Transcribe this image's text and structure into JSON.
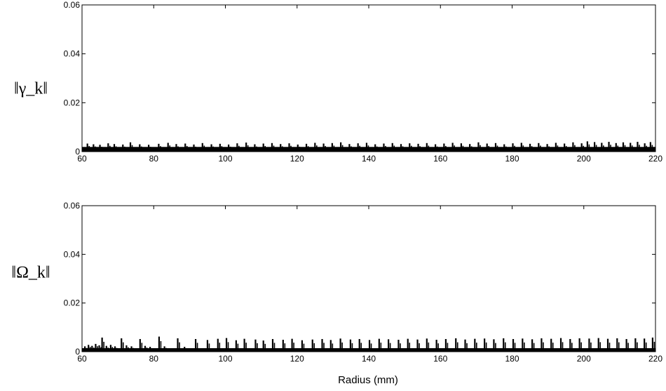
{
  "chart_data": [
    {
      "type": "line",
      "ylabel": "‖γ_k‖",
      "xlabel": "",
      "xlim": [
        60,
        220
      ],
      "ylim": [
        0,
        0.06
      ],
      "xticks": [
        "60",
        "80",
        "100",
        "120",
        "140",
        "160",
        "180",
        "200",
        "220"
      ],
      "yticks": [
        "0",
        "0.02",
        "0.04",
        "0.06"
      ],
      "grid": false,
      "line_color": "#000000",
      "series": [
        {
          "baseline": 0.0012,
          "spikes": [
            {
              "x": 61.5,
              "y": 0.0033
            },
            {
              "x": 63.2,
              "y": 0.003
            },
            {
              "x": 65.0,
              "y": 0.0028
            },
            {
              "x": 67.3,
              "y": 0.0034
            },
            {
              "x": 69.0,
              "y": 0.0031
            },
            {
              "x": 71.4,
              "y": 0.0029
            },
            {
              "x": 73.5,
              "y": 0.0038
            },
            {
              "x": 76.1,
              "y": 0.003
            },
            {
              "x": 78.6,
              "y": 0.0028
            },
            {
              "x": 81.4,
              "y": 0.0032
            },
            {
              "x": 84.0,
              "y": 0.0036
            },
            {
              "x": 86.3,
              "y": 0.0031
            },
            {
              "x": 88.8,
              "y": 0.0033
            },
            {
              "x": 91.2,
              "y": 0.0029
            },
            {
              "x": 93.6,
              "y": 0.0035
            },
            {
              "x": 96.1,
              "y": 0.003
            },
            {
              "x": 98.5,
              "y": 0.0032
            },
            {
              "x": 100.9,
              "y": 0.0029
            },
            {
              "x": 103.3,
              "y": 0.0034
            },
            {
              "x": 105.8,
              "y": 0.0037
            },
            {
              "x": 108.2,
              "y": 0.003
            },
            {
              "x": 110.6,
              "y": 0.0033
            },
            {
              "x": 113.0,
              "y": 0.0035
            },
            {
              "x": 115.4,
              "y": 0.0031
            },
            {
              "x": 117.8,
              "y": 0.0034
            },
            {
              "x": 120.2,
              "y": 0.0029
            },
            {
              "x": 122.6,
              "y": 0.0032
            },
            {
              "x": 125.0,
              "y": 0.0036
            },
            {
              "x": 127.4,
              "y": 0.0033
            },
            {
              "x": 129.8,
              "y": 0.0035
            },
            {
              "x": 132.2,
              "y": 0.0038
            },
            {
              "x": 134.6,
              "y": 0.0031
            },
            {
              "x": 137.0,
              "y": 0.0034
            },
            {
              "x": 139.4,
              "y": 0.0036
            },
            {
              "x": 141.8,
              "y": 0.003
            },
            {
              "x": 144.2,
              "y": 0.0033
            },
            {
              "x": 146.6,
              "y": 0.0035
            },
            {
              "x": 149.0,
              "y": 0.0031
            },
            {
              "x": 151.4,
              "y": 0.0034
            },
            {
              "x": 153.8,
              "y": 0.0032
            },
            {
              "x": 156.2,
              "y": 0.0035
            },
            {
              "x": 158.6,
              "y": 0.003
            },
            {
              "x": 161.0,
              "y": 0.0033
            },
            {
              "x": 163.4,
              "y": 0.0036
            },
            {
              "x": 165.8,
              "y": 0.0034
            },
            {
              "x": 168.2,
              "y": 0.0031
            },
            {
              "x": 170.6,
              "y": 0.0038
            },
            {
              "x": 173.0,
              "y": 0.0033
            },
            {
              "x": 175.4,
              "y": 0.0035
            },
            {
              "x": 177.8,
              "y": 0.003
            },
            {
              "x": 180.2,
              "y": 0.0034
            },
            {
              "x": 182.6,
              "y": 0.0036
            },
            {
              "x": 185.0,
              "y": 0.0032
            },
            {
              "x": 187.4,
              "y": 0.0035
            },
            {
              "x": 189.8,
              "y": 0.0031
            },
            {
              "x": 192.2,
              "y": 0.0036
            },
            {
              "x": 194.6,
              "y": 0.0033
            },
            {
              "x": 197.0,
              "y": 0.0038
            },
            {
              "x": 199.4,
              "y": 0.0034
            },
            {
              "x": 201.0,
              "y": 0.0042
            },
            {
              "x": 203.0,
              "y": 0.0039
            },
            {
              "x": 205.0,
              "y": 0.0036
            },
            {
              "x": 207.0,
              "y": 0.004
            },
            {
              "x": 209.0,
              "y": 0.0035
            },
            {
              "x": 211.0,
              "y": 0.0038
            },
            {
              "x": 213.0,
              "y": 0.0036
            },
            {
              "x": 215.0,
              "y": 0.004
            },
            {
              "x": 217.0,
              "y": 0.0034
            },
            {
              "x": 218.6,
              "y": 0.0039
            }
          ]
        }
      ]
    },
    {
      "type": "line",
      "ylabel": "‖Ω_k‖",
      "xlabel": "Radius (mm)",
      "xlim": [
        60,
        220
      ],
      "ylim": [
        0,
        0.06
      ],
      "xticks": [
        "60",
        "80",
        "100",
        "120",
        "140",
        "160",
        "180",
        "200",
        "220"
      ],
      "yticks": [
        "0",
        "0.02",
        "0.04",
        "0.06"
      ],
      "grid": false,
      "line_color": "#000000",
      "series": [
        {
          "baseline": 0.0009,
          "spikes": [
            {
              "x": 60.8,
              "y": 0.0022
            },
            {
              "x": 61.8,
              "y": 0.0028
            },
            {
              "x": 62.8,
              "y": 0.0024
            },
            {
              "x": 63.8,
              "y": 0.0032
            },
            {
              "x": 64.8,
              "y": 0.0026
            },
            {
              "x": 65.6,
              "y": 0.0058
            },
            {
              "x": 66.8,
              "y": 0.0024
            },
            {
              "x": 68.0,
              "y": 0.0028
            },
            {
              "x": 69.2,
              "y": 0.0022
            },
            {
              "x": 71.0,
              "y": 0.0055
            },
            {
              "x": 72.4,
              "y": 0.0026
            },
            {
              "x": 73.8,
              "y": 0.0022
            },
            {
              "x": 76.2,
              "y": 0.0052
            },
            {
              "x": 77.6,
              "y": 0.0024
            },
            {
              "x": 79.0,
              "y": 0.002
            },
            {
              "x": 81.5,
              "y": 0.0062
            },
            {
              "x": 83.0,
              "y": 0.0022
            },
            {
              "x": 86.7,
              "y": 0.0055
            },
            {
              "x": 88.6,
              "y": 0.002
            },
            {
              "x": 91.7,
              "y": 0.0052
            },
            {
              "x": 95.0,
              "y": 0.0048
            },
            {
              "x": 97.9,
              "y": 0.0053
            },
            {
              "x": 100.3,
              "y": 0.0056
            },
            {
              "x": 103.0,
              "y": 0.0047
            },
            {
              "x": 105.3,
              "y": 0.0053
            },
            {
              "x": 108.4,
              "y": 0.005
            },
            {
              "x": 110.6,
              "y": 0.0046
            },
            {
              "x": 113.2,
              "y": 0.0052
            },
            {
              "x": 116.1,
              "y": 0.0049
            },
            {
              "x": 118.6,
              "y": 0.0053
            },
            {
              "x": 121.4,
              "y": 0.0047
            },
            {
              "x": 124.3,
              "y": 0.005
            },
            {
              "x": 127.0,
              "y": 0.0052
            },
            {
              "x": 129.4,
              "y": 0.0048
            },
            {
              "x": 132.1,
              "y": 0.0054
            },
            {
              "x": 134.9,
              "y": 0.005
            },
            {
              "x": 137.4,
              "y": 0.0052
            },
            {
              "x": 140.2,
              "y": 0.0048
            },
            {
              "x": 142.9,
              "y": 0.0053
            },
            {
              "x": 145.5,
              "y": 0.0051
            },
            {
              "x": 148.3,
              "y": 0.0049
            },
            {
              "x": 150.9,
              "y": 0.0053
            },
            {
              "x": 153.6,
              "y": 0.005
            },
            {
              "x": 156.2,
              "y": 0.0054
            },
            {
              "x": 158.9,
              "y": 0.0049
            },
            {
              "x": 161.5,
              "y": 0.0052
            },
            {
              "x": 164.3,
              "y": 0.0055
            },
            {
              "x": 166.9,
              "y": 0.005
            },
            {
              "x": 169.6,
              "y": 0.0053
            },
            {
              "x": 172.3,
              "y": 0.0054
            },
            {
              "x": 174.9,
              "y": 0.0051
            },
            {
              "x": 177.6,
              "y": 0.0055
            },
            {
              "x": 180.3,
              "y": 0.0052
            },
            {
              "x": 182.9,
              "y": 0.0054
            },
            {
              "x": 185.6,
              "y": 0.0051
            },
            {
              "x": 188.2,
              "y": 0.0055
            },
            {
              "x": 190.9,
              "y": 0.0053
            },
            {
              "x": 193.6,
              "y": 0.0056
            },
            {
              "x": 196.2,
              "y": 0.0052
            },
            {
              "x": 198.8,
              "y": 0.0055
            },
            {
              "x": 201.5,
              "y": 0.0054
            },
            {
              "x": 204.1,
              "y": 0.0056
            },
            {
              "x": 206.7,
              "y": 0.0053
            },
            {
              "x": 209.3,
              "y": 0.0055
            },
            {
              "x": 211.9,
              "y": 0.0052
            },
            {
              "x": 214.4,
              "y": 0.0055
            },
            {
              "x": 216.9,
              "y": 0.0054
            },
            {
              "x": 219.2,
              "y": 0.0058
            }
          ]
        }
      ]
    }
  ]
}
